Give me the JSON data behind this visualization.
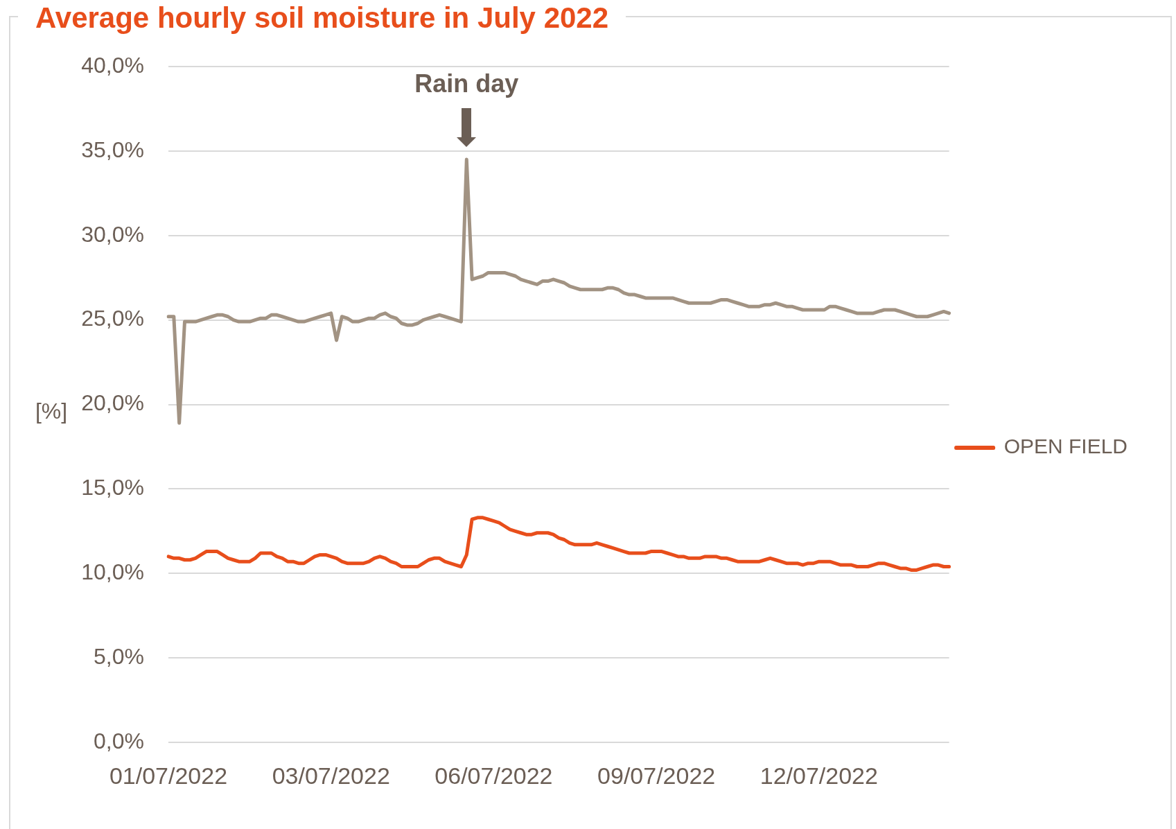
{
  "chart_data": {
    "type": "line",
    "title": "Average hourly soil moisture in July 2022",
    "ylabel": "[%]",
    "categories": [
      "01/07/2022",
      null,
      null,
      null,
      null,
      null,
      null,
      null,
      null,
      null,
      null,
      null,
      null,
      null,
      null,
      null,
      null,
      null,
      null,
      null,
      null,
      null,
      null,
      null,
      null,
      null,
      null,
      null,
      null,
      null,
      "03/07/2022",
      null,
      null,
      null,
      null,
      null,
      null,
      null,
      null,
      null,
      null,
      null,
      null,
      null,
      null,
      null,
      null,
      null,
      null,
      null,
      null,
      null,
      null,
      null,
      null,
      null,
      null,
      null,
      null,
      null,
      "06/07/2022",
      null,
      null,
      null,
      null,
      null,
      null,
      null,
      null,
      null,
      null,
      null,
      null,
      null,
      null,
      null,
      null,
      null,
      null,
      null,
      null,
      null,
      null,
      null,
      null,
      null,
      null,
      null,
      null,
      null,
      "09/07/2022",
      null,
      null,
      null,
      null,
      null,
      null,
      null,
      null,
      null,
      null,
      null,
      null,
      null,
      null,
      null,
      null,
      null,
      null,
      null,
      null,
      null,
      null,
      null,
      null,
      null,
      null,
      null,
      null,
      null,
      "12/07/2022",
      null,
      null,
      null,
      null,
      null,
      null,
      null,
      null,
      null,
      null,
      null,
      null,
      null,
      null,
      null,
      null,
      null,
      null,
      null,
      null,
      null,
      null,
      null,
      null
    ],
    "series": [
      {
        "name": "OPEN FIELD",
        "color": "#e84e1b",
        "values": [
          11.0,
          10.9,
          10.9,
          10.8,
          10.8,
          10.9,
          11.1,
          11.3,
          11.3,
          11.3,
          11.1,
          10.9,
          10.8,
          10.7,
          10.7,
          10.7,
          10.9,
          11.2,
          11.2,
          11.2,
          11.0,
          10.9,
          10.7,
          10.7,
          10.6,
          10.6,
          10.8,
          11.0,
          11.1,
          11.1,
          11.0,
          10.9,
          10.7,
          10.6,
          10.6,
          10.6,
          10.6,
          10.7,
          10.9,
          11.0,
          10.9,
          10.7,
          10.6,
          10.4,
          10.4,
          10.4,
          10.4,
          10.6,
          10.8,
          10.9,
          10.9,
          10.7,
          10.6,
          10.5,
          10.4,
          11.1,
          13.2,
          13.3,
          13.3,
          13.2,
          13.1,
          13.0,
          12.8,
          12.6,
          12.5,
          12.4,
          12.3,
          12.3,
          12.4,
          12.4,
          12.4,
          12.3,
          12.1,
          12.0,
          11.8,
          11.7,
          11.7,
          11.7,
          11.7,
          11.8,
          11.7,
          11.6,
          11.5,
          11.4,
          11.3,
          11.2,
          11.2,
          11.2,
          11.2,
          11.3,
          11.3,
          11.3,
          11.2,
          11.1,
          11.0,
          11.0,
          10.9,
          10.9,
          10.9,
          11.0,
          11.0,
          11.0,
          10.9,
          10.9,
          10.8,
          10.7,
          10.7,
          10.7,
          10.7,
          10.7,
          10.8,
          10.9,
          10.8,
          10.7,
          10.6,
          10.6,
          10.6,
          10.5,
          10.6,
          10.6,
          10.7,
          10.7,
          10.7,
          10.6,
          10.5,
          10.5,
          10.5,
          10.4,
          10.4,
          10.4,
          10.5,
          10.6,
          10.6,
          10.5,
          10.4,
          10.3,
          10.3,
          10.2,
          10.2,
          10.3,
          10.4,
          10.5,
          10.5,
          10.4,
          10.4
        ]
      },
      {
        "color": "#a29383",
        "values": [
          25.2,
          25.2,
          18.9,
          24.9,
          24.9,
          24.9,
          25.0,
          25.1,
          25.2,
          25.3,
          25.3,
          25.2,
          25.0,
          24.9,
          24.9,
          24.9,
          25.0,
          25.1,
          25.1,
          25.3,
          25.3,
          25.2,
          25.1,
          25.0,
          24.9,
          24.9,
          25.0,
          25.1,
          25.2,
          25.3,
          25.4,
          23.8,
          25.2,
          25.1,
          24.9,
          24.9,
          25.0,
          25.1,
          25.1,
          25.3,
          25.4,
          25.2,
          25.1,
          24.8,
          24.7,
          24.7,
          24.8,
          25.0,
          25.1,
          25.2,
          25.3,
          25.2,
          25.1,
          25.0,
          24.9,
          34.5,
          27.4,
          27.5,
          27.6,
          27.8,
          27.8,
          27.8,
          27.8,
          27.7,
          27.6,
          27.4,
          27.3,
          27.2,
          27.1,
          27.3,
          27.3,
          27.4,
          27.3,
          27.2,
          27.0,
          26.9,
          26.8,
          26.8,
          26.8,
          26.8,
          26.8,
          26.9,
          26.9,
          26.8,
          26.6,
          26.5,
          26.5,
          26.4,
          26.3,
          26.3,
          26.3,
          26.3,
          26.3,
          26.3,
          26.2,
          26.1,
          26.0,
          26.0,
          26.0,
          26.0,
          26.0,
          26.1,
          26.2,
          26.2,
          26.1,
          26.0,
          25.9,
          25.8,
          25.8,
          25.8,
          25.9,
          25.9,
          26.0,
          25.9,
          25.8,
          25.8,
          25.7,
          25.6,
          25.6,
          25.6,
          25.6,
          25.6,
          25.8,
          25.8,
          25.7,
          25.6,
          25.5,
          25.4,
          25.4,
          25.4,
          25.4,
          25.5,
          25.6,
          25.6,
          25.6,
          25.5,
          25.4,
          25.3,
          25.2,
          25.2,
          25.2,
          25.3,
          25.4,
          25.5,
          25.4
        ]
      }
    ],
    "ylim": [
      0,
      40
    ],
    "yticks": [
      {
        "value": 0,
        "label": "0,0%"
      },
      {
        "value": 5,
        "label": "5,0%"
      },
      {
        "value": 10,
        "label": "10,0%"
      },
      {
        "value": 15,
        "label": "15,0%"
      },
      {
        "value": 20,
        "label": "20,0%"
      },
      {
        "value": 25,
        "label": "25,0%"
      },
      {
        "value": 30,
        "label": "30,0%"
      },
      {
        "value": 35,
        "label": "35,0%"
      },
      {
        "value": 40,
        "label": "40,0%"
      }
    ],
    "grid": "y",
    "legend": "right",
    "annotations": [
      {
        "text": "Rain day",
        "y": 34.5
      }
    ]
  }
}
